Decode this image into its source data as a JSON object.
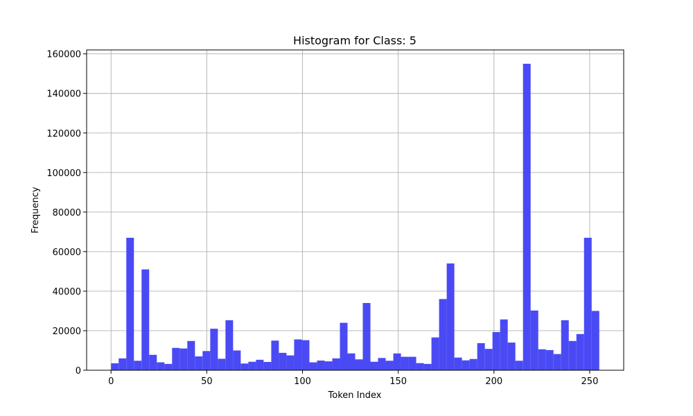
{
  "chart_data": {
    "type": "bar",
    "title": "Histogram for Class: 5",
    "xlabel": "Token Index",
    "ylabel": "Frequency",
    "xlim": [
      -12.75,
      267.75
    ],
    "ylim": [
      0,
      162000
    ],
    "xticks": [
      0,
      50,
      100,
      150,
      200,
      250
    ],
    "yticks": [
      0,
      20000,
      40000,
      60000,
      80000,
      100000,
      120000,
      140000,
      160000
    ],
    "grid": true,
    "bar_color": "#4a4af5",
    "bin_edges_start": 0,
    "bin_width": 3.984375,
    "values": [
      3500,
      6000,
      67000,
      4800,
      51000,
      7800,
      4000,
      3200,
      11300,
      11000,
      14800,
      7000,
      9700,
      21000,
      5800,
      25300,
      10000,
      3400,
      4300,
      5300,
      4200,
      15000,
      8800,
      7500,
      15600,
      15200,
      4000,
      4900,
      4500,
      6000,
      24000,
      8500,
      5500,
      34000,
      4300,
      6200,
      4800,
      8500,
      6800,
      6800,
      3600,
      3200,
      16600,
      36000,
      54000,
      6400,
      5000,
      5700,
      13700,
      10800,
      19300,
      25700,
      14000,
      4800,
      155000,
      30200,
      10600,
      10200,
      8200,
      25300,
      14800,
      18300,
      67000,
      30000
    ]
  }
}
